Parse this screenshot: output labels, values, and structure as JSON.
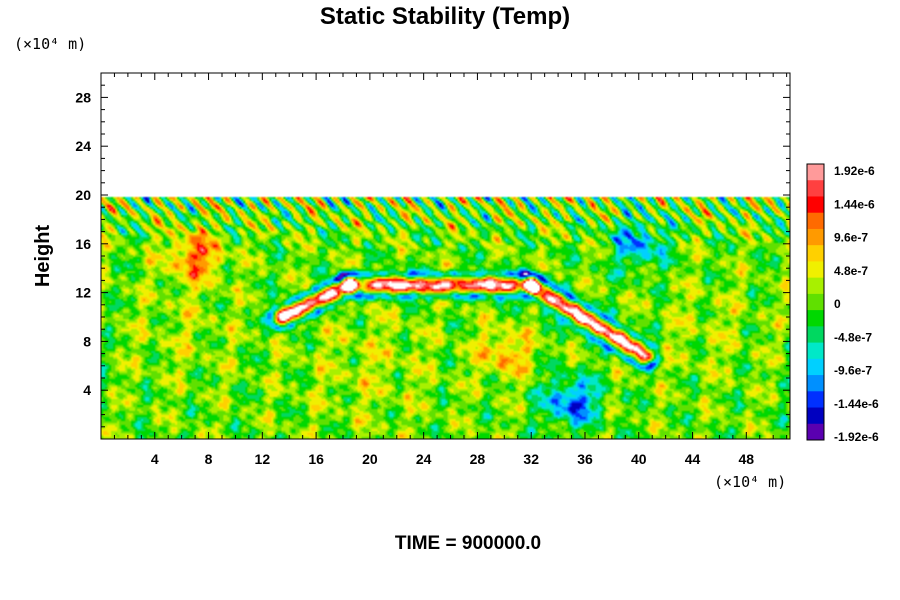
{
  "chart_data": {
    "type": "heatmap",
    "title": "Static Stability (Temp)",
    "ylabel": "Height",
    "x_unit_label": "(×10⁴ m)",
    "y_unit_label": "(×10⁴ m)",
    "xlim": [
      0,
      51.25
    ],
    "ylim": [
      0,
      30
    ],
    "x_ticks": [
      "4",
      "8",
      "12",
      "16",
      "20",
      "24",
      "28",
      "32",
      "36",
      "40",
      "44",
      "48"
    ],
    "y_ticks": [
      "4",
      "8",
      "12",
      "16",
      "20",
      "24",
      "28"
    ],
    "data_top": 19.8,
    "background_value": 0,
    "colorbar": {
      "labels": [
        "1.92e-6",
        "1.44e-6",
        "9.6e-7",
        "4.8e-7",
        "0",
        "-4.8e-7",
        "-9.6e-7",
        "-1.44e-6",
        "-1.92e-6"
      ],
      "colors": [
        "#ff9a9a",
        "#ff4040",
        "#ff0000",
        "#ff6a00",
        "#ff9a00",
        "#ffd000",
        "#f0f000",
        "#a8f000",
        "#60e000",
        "#00d800",
        "#00d860",
        "#00e8c8",
        "#00d0ff",
        "#0090ff",
        "#0030ff",
        "#0000c0",
        "#5a00b0"
      ],
      "range": [
        -1.92e-06,
        1.92e-06
      ]
    },
    "features": [
      {
        "kind": "stable_band",
        "from": [
          13.5,
          10.0
        ],
        "to": [
          18.5,
          12.6
        ],
        "value": 2e-06
      },
      {
        "kind": "stable_band",
        "from": [
          18.5,
          12.6
        ],
        "to": [
          32.0,
          12.6
        ],
        "value": 1.9e-06
      },
      {
        "kind": "stable_band",
        "from": [
          32.0,
          12.6
        ],
        "to": [
          40.5,
          6.8
        ],
        "value": 2e-06
      },
      {
        "kind": "blob",
        "at": [
          20,
          6
        ],
        "radius": 5,
        "value": 2.5e-07
      },
      {
        "kind": "blob",
        "at": [
          6,
          9
        ],
        "radius": 4,
        "value": 2e-07
      },
      {
        "kind": "blob",
        "at": [
          45,
          9
        ],
        "radius": 4,
        "value": 2e-07
      },
      {
        "kind": "blob",
        "at": [
          35,
          3
        ],
        "radius": 2,
        "value": -1.3e-06
      },
      {
        "kind": "blob",
        "at": [
          40,
          16
        ],
        "radius": 2,
        "value": -1e-06
      },
      {
        "kind": "blob",
        "at": [
          7,
          15
        ],
        "radius": 2,
        "value": 1.1e-06
      },
      {
        "kind": "blob",
        "at": [
          30,
          7
        ],
        "radius": 2,
        "value": 8e-07
      }
    ]
  },
  "footer": {
    "time_label": "TIME = 900000.0"
  }
}
